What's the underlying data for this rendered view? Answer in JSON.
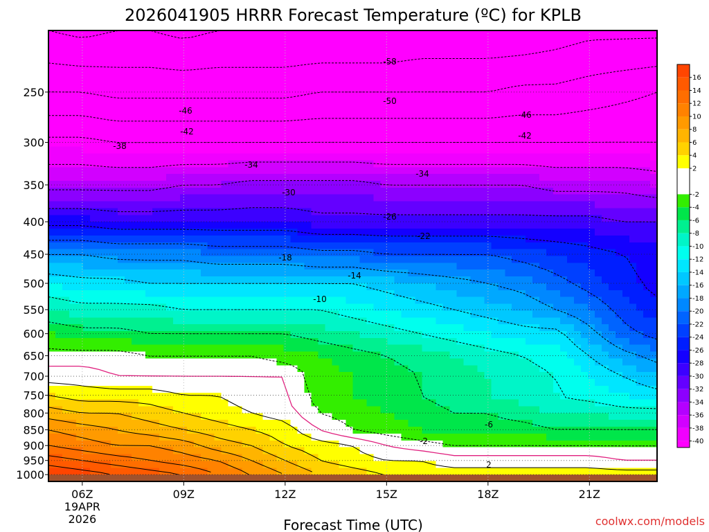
{
  "chart_data": {
    "type": "heatmap",
    "title": "2026041905 HRRR Forecast Temperature (ºC) for KPLB",
    "xlabel": "Forecast Time (UTC)",
    "ylabel": "",
    "credit": "coolwx.com/models",
    "x_ticks": [
      {
        "label": "06Z",
        "hour": 6,
        "date_lines": [
          "19APR",
          "2026"
        ]
      },
      {
        "label": "09Z",
        "hour": 9
      },
      {
        "label": "12Z",
        "hour": 12
      },
      {
        "label": "15Z",
        "hour": 15
      },
      {
        "label": "18Z",
        "hour": 18
      },
      {
        "label": "21Z",
        "hour": 21
      }
    ],
    "xlim": [
      5,
      23
    ],
    "y_ticks": [
      "250",
      "300",
      "350",
      "400",
      "450",
      "500",
      "550",
      "600",
      "650",
      "700",
      "750",
      "800",
      "850",
      "900",
      "950",
      "1000"
    ],
    "ylim": [
      200,
      1025
    ],
    "y_scale": "log-pressure",
    "grid": true,
    "legend": "colorbar-right",
    "colorbar": {
      "min": -41,
      "max": 18,
      "tick_labels": [
        "16",
        "14",
        "12",
        "10",
        "8",
        "6",
        "4",
        "2",
        "-2",
        "-4",
        "-6",
        "-8",
        "-10",
        "-12",
        "-14",
        "-16",
        "-18",
        "-20",
        "-22",
        "-24",
        "-26",
        "-28",
        "-30",
        "-32",
        "-34",
        "-36",
        "-38",
        "-40"
      ],
      "bins": [
        {
          "lo": 16,
          "hi": 18,
          "color": "#ff4500"
        },
        {
          "lo": 14,
          "hi": 16,
          "color": "#ff5a00"
        },
        {
          "lo": 12,
          "hi": 14,
          "color": "#ff6e00"
        },
        {
          "lo": 10,
          "hi": 12,
          "color": "#ff8200"
        },
        {
          "lo": 8,
          "hi": 10,
          "color": "#ff9a00"
        },
        {
          "lo": 6,
          "hi": 8,
          "color": "#ffb400"
        },
        {
          "lo": 4,
          "hi": 6,
          "color": "#ffd200"
        },
        {
          "lo": 2,
          "hi": 4,
          "color": "#ffff00"
        },
        {
          "lo": -2,
          "hi": 2,
          "color": "#ffffff"
        },
        {
          "lo": -4,
          "hi": -2,
          "color": "#33ee00"
        },
        {
          "lo": -6,
          "hi": -4,
          "color": "#00e64a"
        },
        {
          "lo": -8,
          "hi": -6,
          "color": "#00f090"
        },
        {
          "lo": -10,
          "hi": -8,
          "color": "#00f5c8"
        },
        {
          "lo": -12,
          "hi": -10,
          "color": "#00ffee"
        },
        {
          "lo": -14,
          "hi": -12,
          "color": "#00e6ff"
        },
        {
          "lo": -16,
          "hi": -14,
          "color": "#00c8ff"
        },
        {
          "lo": -18,
          "hi": -16,
          "color": "#00a8ff"
        },
        {
          "lo": -20,
          "hi": -18,
          "color": "#0088ff"
        },
        {
          "lo": -22,
          "hi": -20,
          "color": "#0064ff"
        },
        {
          "lo": -24,
          "hi": -22,
          "color": "#0040ff"
        },
        {
          "lo": -26,
          "hi": -24,
          "color": "#001eff"
        },
        {
          "lo": -28,
          "hi": -26,
          "color": "#1400ff"
        },
        {
          "lo": -30,
          "hi": -28,
          "color": "#3c00ff"
        },
        {
          "lo": -32,
          "hi": -30,
          "color": "#6400ff"
        },
        {
          "lo": -34,
          "hi": -32,
          "color": "#8c00ff"
        },
        {
          "lo": -36,
          "hi": -34,
          "color": "#b400ff"
        },
        {
          "lo": -38,
          "hi": -36,
          "color": "#d200ff"
        },
        {
          "lo": -40,
          "hi": -38,
          "color": "#f000ff"
        },
        {
          "lo": -99,
          "hi": -40,
          "color": "#ff00ff"
        }
      ]
    },
    "ground_color": "#a0522d",
    "contour_labels": [
      "-58",
      "-50",
      "-46",
      "-46",
      "-42",
      "-42",
      "-38",
      "-34",
      "-34",
      "-30",
      "-26",
      "-22",
      "-18",
      "-14",
      "-10",
      "-6",
      "-2",
      "2"
    ],
    "profiles": {
      "hours": [
        5,
        6,
        7,
        8,
        9,
        10,
        11,
        12,
        13,
        14,
        15,
        16,
        17,
        18,
        19,
        20,
        21,
        22,
        23
      ],
      "levels": [
        200,
        250,
        300,
        350,
        400,
        450,
        500,
        550,
        600,
        650,
        700,
        750,
        800,
        850,
        900,
        950,
        1000
      ],
      "series": [
        {
          "name": "200",
          "values": [
            -58,
            -59,
            -58,
            -58,
            -59,
            -58,
            -58,
            -58,
            -58,
            -58,
            -58,
            -57,
            -57,
            -57,
            -57,
            -56,
            -55,
            -55,
            -55
          ]
        },
        {
          "name": "250",
          "values": [
            -50,
            -50,
            -51,
            -51,
            -51,
            -51,
            -51,
            -51,
            -50,
            -50,
            -50,
            -50,
            -50,
            -50,
            -49,
            -49,
            -48,
            -47,
            -46
          ]
        },
        {
          "name": "300",
          "values": [
            -41,
            -41,
            -42,
            -42,
            -42,
            -42,
            -42,
            -42,
            -42,
            -42,
            -42,
            -42,
            -42,
            -42,
            -42,
            -42,
            -42,
            -42,
            -42
          ]
        },
        {
          "name": "350",
          "values": [
            -35,
            -35,
            -35,
            -35,
            -34,
            -34,
            -33,
            -33,
            -33,
            -33,
            -34,
            -34,
            -34,
            -34,
            -34,
            -35,
            -35,
            -35,
            -36
          ]
        },
        {
          "name": "400",
          "values": [
            -27,
            -27,
            -28,
            -28,
            -28,
            -28,
            -28,
            -28,
            -29,
            -29,
            -29,
            -29,
            -29,
            -29,
            -29,
            -29,
            -29,
            -30,
            -30
          ]
        },
        {
          "name": "450",
          "values": [
            -18,
            -18,
            -19,
            -19,
            -19,
            -20,
            -20,
            -20,
            -21,
            -21,
            -22,
            -22,
            -22,
            -22,
            -23,
            -24,
            -25,
            -26,
            -27
          ]
        },
        {
          "name": "500",
          "values": [
            -12,
            -13,
            -13,
            -14,
            -14,
            -14,
            -14,
            -14,
            -14,
            -14,
            -15,
            -16,
            -17,
            -18,
            -19,
            -21,
            -23,
            -25,
            -27
          ]
        },
        {
          "name": "550",
          "values": [
            -8,
            -9,
            -9,
            -9,
            -10,
            -10,
            -10,
            -10,
            -10,
            -11,
            -12,
            -13,
            -14,
            -15,
            -16,
            -18,
            -20,
            -23,
            -25
          ]
        },
        {
          "name": "600",
          "values": [
            -4,
            -5,
            -5,
            -6,
            -6,
            -6,
            -6,
            -6,
            -7,
            -8,
            -9,
            -10,
            -11,
            -12,
            -13,
            -13,
            -17,
            -21,
            -23
          ]
        },
        {
          "name": "650",
          "values": [
            -1,
            -1,
            -1,
            -2,
            -2,
            -2,
            -2,
            -3,
            -4,
            -5,
            -6,
            -7,
            -8,
            -9,
            -10,
            -11,
            -14,
            -17,
            -19
          ]
        },
        {
          "name": "700",
          "values": [
            1,
            1,
            0,
            0,
            0,
            0,
            0,
            0,
            -3,
            -4,
            -5,
            -6,
            -7,
            -8,
            -9,
            -10,
            -12,
            -14,
            -16
          ]
        },
        {
          "name": "750",
          "values": [
            4,
            3,
            3,
            3,
            2,
            2,
            1,
            0,
            -3,
            -4,
            -5,
            -6,
            -7,
            -8,
            -9,
            -10,
            -11,
            -12,
            -13
          ]
        },
        {
          "name": "800",
          "values": [
            7,
            6,
            6,
            5,
            4,
            3,
            2,
            1,
            -2,
            -3,
            -4,
            -5,
            -6,
            -6,
            -7,
            -8,
            -8,
            -9,
            -9
          ]
        },
        {
          "name": "850",
          "values": [
            10,
            9,
            8,
            7,
            6,
            5,
            4,
            3,
            0,
            -2,
            -3,
            -4,
            -5,
            -5,
            -5,
            -6,
            -6,
            -6,
            -6
          ]
        },
        {
          "name": "900",
          "values": [
            12,
            11,
            10,
            10,
            9,
            7,
            6,
            4,
            3,
            2,
            0,
            -1,
            -2,
            -2,
            -2,
            -2,
            -2,
            -2,
            -2
          ]
        },
        {
          "name": "950",
          "values": [
            15,
            14,
            13,
            12,
            11,
            10,
            8,
            6,
            4,
            3,
            2,
            2,
            1,
            1,
            1,
            1,
            1,
            0,
            0
          ]
        },
        {
          "name": "1000",
          "values": [
            18,
            17,
            16,
            15,
            14,
            12,
            10,
            8,
            6,
            5,
            4,
            3,
            3,
            3,
            3,
            3,
            3,
            3,
            3
          ]
        }
      ]
    }
  }
}
